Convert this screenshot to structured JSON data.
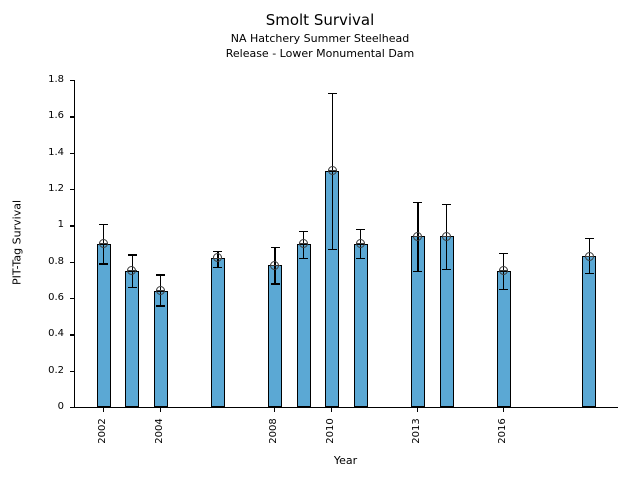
{
  "title": "Smolt Survival",
  "subtitle_line1": "NA Hatchery Summer Steelhead",
  "subtitle_line2": "Release - Lower Monumental Dam",
  "chart_data": {
    "type": "bar",
    "title": "Smolt Survival",
    "subtitle": [
      "NA Hatchery Summer Steelhead",
      "Release - Lower Monumental Dam"
    ],
    "xlabel": "Year",
    "ylabel": "PIT-Tag Survival",
    "xlim": [
      2001,
      2020
    ],
    "ylim": [
      0,
      1.8
    ],
    "grid": false,
    "legend": "none",
    "bar_color": "#5BA8D4",
    "bar_edge_color": "#000000",
    "error_color": "#000000",
    "marker": "open-circle",
    "ytick_labels": [
      "0",
      "0.2",
      "0.4",
      "0.6",
      "0.8",
      "1",
      "1.2",
      "1.4",
      "1.6",
      "1.8"
    ],
    "ytick_values": [
      0,
      0.2,
      0.4,
      0.6,
      0.8,
      1.0,
      1.2,
      1.4,
      1.6,
      1.8
    ],
    "xtick_labels": [
      "2002",
      "2004",
      "2008",
      "2010",
      "2013",
      "2016"
    ],
    "xtick_values": [
      2002,
      2004,
      2008,
      2010,
      2013,
      2016
    ],
    "series": [
      {
        "name": "PIT-Tag Survival",
        "points": [
          {
            "year": 2002,
            "value": 0.9,
            "err_low": 0.79,
            "err_high": 1.01
          },
          {
            "year": 2003,
            "value": 0.75,
            "err_low": 0.66,
            "err_high": 0.84
          },
          {
            "year": 2004,
            "value": 0.64,
            "err_low": 0.56,
            "err_high": 0.73
          },
          {
            "year": 2006,
            "value": 0.82,
            "err_low": 0.77,
            "err_high": 0.86
          },
          {
            "year": 2008,
            "value": 0.78,
            "err_low": 0.68,
            "err_high": 0.88
          },
          {
            "year": 2009,
            "value": 0.9,
            "err_low": 0.82,
            "err_high": 0.97
          },
          {
            "year": 2010,
            "value": 1.3,
            "err_low": 0.87,
            "err_high": 1.73
          },
          {
            "year": 2011,
            "value": 0.9,
            "err_low": 0.82,
            "err_high": 0.98
          },
          {
            "year": 2013,
            "value": 0.94,
            "err_low": 0.75,
            "err_high": 1.13
          },
          {
            "year": 2014,
            "value": 0.94,
            "err_low": 0.76,
            "err_high": 1.12
          },
          {
            "year": 2016,
            "value": 0.75,
            "err_low": 0.65,
            "err_high": 0.85
          },
          {
            "year": 2019,
            "value": 0.83,
            "err_low": 0.74,
            "err_high": 0.93
          }
        ]
      }
    ]
  }
}
